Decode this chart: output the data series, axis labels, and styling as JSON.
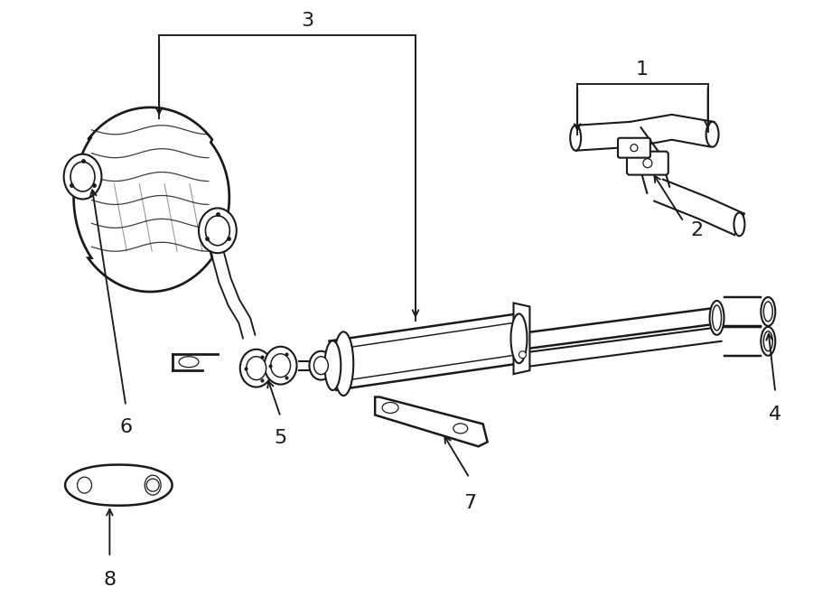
{
  "bg_color": "#ffffff",
  "lc": "#1a1a1a",
  "lw": 1.5,
  "figsize": [
    9.0,
    6.61
  ],
  "dpi": 100
}
